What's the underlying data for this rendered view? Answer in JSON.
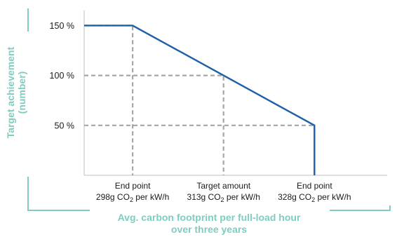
{
  "chart_data": {
    "type": "line",
    "ylabel_lines": [
      "Target achievement",
      "(number)"
    ],
    "xlabel_lines": [
      "Avg. carbon footprint per full-load hour",
      "over three years"
    ],
    "y_ticks": [
      {
        "value": 150,
        "label": "150 %"
      },
      {
        "value": 100,
        "label": "100 %"
      },
      {
        "value": 50,
        "label": "50 %"
      }
    ],
    "ylim": [
      0,
      165
    ],
    "xlim": [
      290,
      340
    ],
    "categories": [
      {
        "x": 298,
        "line1": "End point",
        "line2_prefix": "298g CO",
        "subscript": "2",
        "line2_suffix": " per kW/h"
      },
      {
        "x": 313,
        "line1": "Target amount",
        "line2_prefix": "313g CO",
        "subscript": "2",
        "line2_suffix": " per kW/h"
      },
      {
        "x": 328,
        "line1": "End point",
        "line2_prefix": "328g CO",
        "subscript": "2",
        "line2_suffix": " per kW/h"
      }
    ],
    "series": [
      {
        "points": [
          [
            290,
            150
          ],
          [
            298,
            150
          ],
          [
            313,
            100
          ],
          [
            328,
            50
          ],
          [
            328,
            0
          ]
        ]
      }
    ],
    "reference_lines": [
      {
        "points": [
          [
            290,
            150
          ],
          [
            298,
            150
          ],
          [
            298,
            0
          ]
        ]
      },
      {
        "points": [
          [
            290,
            100
          ],
          [
            313,
            100
          ],
          [
            313,
            0
          ]
        ]
      },
      {
        "points": [
          [
            290,
            50
          ],
          [
            328,
            50
          ],
          [
            328,
            0
          ]
        ]
      }
    ],
    "colors": {
      "line": "#1f5fa5",
      "dashed": "#a6a6a6",
      "axis_title": "#7fcdbf",
      "bracket": "#7fcdbf",
      "axis": "#bfbfbf"
    }
  }
}
